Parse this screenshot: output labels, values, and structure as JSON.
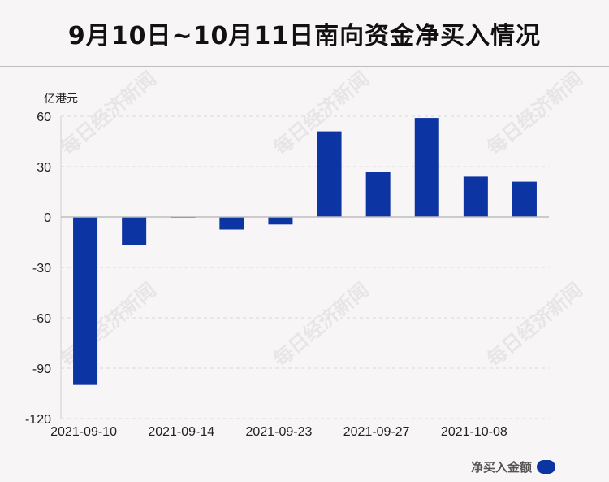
{
  "title": "9月10日~10月11日南向资金净买入情况",
  "watermark_text": "每日经济新闻",
  "chart_data": {
    "type": "bar",
    "unit": "亿港元",
    "categories": [
      "2021-09-10",
      "",
      "2021-09-14",
      "",
      "2021-09-23",
      "",
      "2021-09-27",
      "",
      "2021-10-08",
      ""
    ],
    "x_tick_labels": [
      "2021-09-10",
      "2021-09-14",
      "2021-09-23",
      "2021-09-27",
      "2021-10-08"
    ],
    "series": [
      {
        "name": "净买入金额",
        "color": "#0c34a2",
        "values": [
          -100,
          -16.5,
          -0.3,
          -7.5,
          -4.5,
          51,
          27,
          59,
          24,
          21
        ]
      }
    ],
    "ylim": [
      -120,
      60
    ],
    "yticks": [
      60,
      30,
      0,
      -30,
      -60,
      -90,
      -120
    ],
    "grid": true,
    "legend_position": "bottom-right"
  }
}
